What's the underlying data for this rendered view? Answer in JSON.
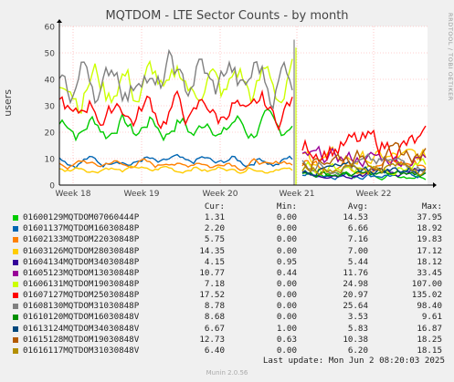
{
  "chart_data": {
    "type": "line",
    "title": "MQTDOM - LTE Sector Counts - by month",
    "ylabel": "users",
    "ylim": [
      0,
      60
    ],
    "yticks": [
      0,
      10,
      20,
      30,
      40,
      50,
      60
    ],
    "xticks": [
      "Week 18",
      "Week 19",
      "Week 20",
      "Week 21",
      "Week 22"
    ],
    "grid": true,
    "legend_position": "bottom",
    "legend_headers": {
      "cur": "Cur:",
      "min": "Min:",
      "avg": "Avg:",
      "max": "Max:"
    },
    "series": [
      {
        "name": "01600129MQTDOM07060444P",
        "color": "#00cc00",
        "cur": "1.31",
        "min": "0.00",
        "avg": "14.53",
        "max": "37.95",
        "before": 22,
        "after": 4
      },
      {
        "name": "01601137MQTDOM16030848P",
        "color": "#0066b3",
        "cur": "2.20",
        "min": "0.00",
        "avg": "6.66",
        "max": "18.92",
        "before": 9,
        "after": 4
      },
      {
        "name": "01602133MQTDOM22030848P",
        "color": "#ff8000",
        "cur": "5.75",
        "min": "0.00",
        "avg": "7.16",
        "max": "19.83",
        "before": 8,
        "after": 8
      },
      {
        "name": "01603126MQTDOM28030848P",
        "color": "#ffcc00",
        "cur": "14.35",
        "min": "0.00",
        "avg": "7.00",
        "max": "17.12",
        "before": 6,
        "after": 10
      },
      {
        "name": "01604134MQTDOM34030848P",
        "color": "#330099",
        "cur": "4.15",
        "min": "0.95",
        "avg": "5.44",
        "max": "18.12",
        "before": null,
        "after": 5
      },
      {
        "name": "01605123MQTDOM13030848P",
        "color": "#990099",
        "cur": "10.77",
        "min": "0.44",
        "avg": "11.76",
        "max": "33.45",
        "before": null,
        "after": 10
      },
      {
        "name": "01606131MQTDOM19030848P",
        "color": "#ccff00",
        "cur": "7.18",
        "min": "0.00",
        "avg": "24.98",
        "max": "107.00",
        "before": 38,
        "after": 7
      },
      {
        "name": "01607127MQTDOM25030848P",
        "color": "#ff0000",
        "cur": "17.52",
        "min": "0.00",
        "avg": "20.97",
        "max": "135.02",
        "before": 28,
        "after": 15
      },
      {
        "name": "01608130MQTDOM31030848P",
        "color": "#808080",
        "cur": "8.78",
        "min": "0.00",
        "avg": "25.64",
        "max": "98.40",
        "before": 40,
        "after": 8
      },
      {
        "name": "01610120MQTDOM16030848V",
        "color": "#008f00",
        "cur": "8.68",
        "min": "0.00",
        "avg": "3.53",
        "max": "9.61",
        "before": null,
        "after": 4
      },
      {
        "name": "01613124MQTDOM34030848V",
        "color": "#00487d",
        "cur": "6.67",
        "min": "1.00",
        "avg": "5.83",
        "max": "16.87",
        "before": null,
        "after": 6
      },
      {
        "name": "01615128MQTDOM19030848V",
        "color": "#b35a00",
        "cur": "12.73",
        "min": "0.63",
        "avg": "10.38",
        "max": "18.25",
        "before": null,
        "after": 11
      },
      {
        "name": "01616117MQTDOM31030848V",
        "color": "#b38f00",
        "cur": "6.40",
        "min": "0.00",
        "avg": "6.20",
        "max": "18.15",
        "before": null,
        "after": 7
      }
    ]
  },
  "brand": "RRDTOOL / TOBI OETIKER",
  "last_update": "Last update: Mon Jun  2 08:20:03 2025",
  "footer": "Munin 2.0.56"
}
